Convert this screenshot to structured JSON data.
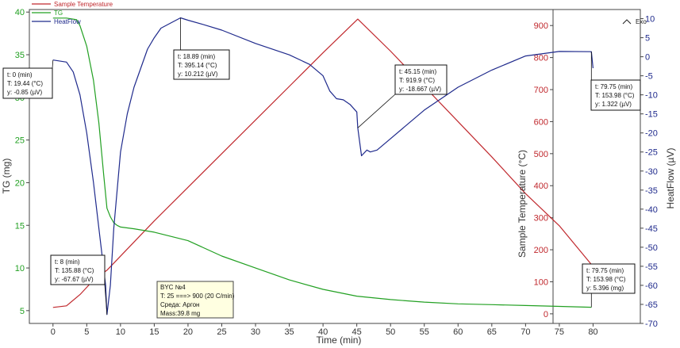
{
  "exo_label": "Exo",
  "chart_data": {
    "type": "line",
    "xlabel": "Time (min)",
    "x_ticks": [
      0,
      5,
      10,
      15,
      20,
      25,
      30,
      35,
      40,
      45,
      50,
      55,
      60,
      65,
      70,
      75,
      80
    ],
    "xlim": [
      -3.5,
      87
    ],
    "y_axes": {
      "tg": {
        "label": "TG (mg)",
        "ylim": [
          3.5,
          40.3
        ],
        "ticks": [
          5,
          10,
          15,
          20,
          25,
          30,
          35,
          40
        ],
        "color": "#22a022"
      },
      "temperature": {
        "label": "Sample Temperature (°C)",
        "ylim": [
          -30,
          950
        ],
        "ticks": [
          0,
          100,
          200,
          300,
          400,
          500,
          600,
          700,
          800,
          900
        ],
        "color": "#c0282d"
      },
      "heatflow": {
        "label": "HeatFlow (µV)",
        "ylim": [
          -70,
          12.4
        ],
        "ticks": [
          10,
          5,
          0,
          -5,
          -10,
          -15,
          -20,
          -25,
          -30,
          -35,
          -40,
          -45,
          -50,
          -55,
          -60,
          -65,
          -70
        ],
        "color": "#1f2a8c"
      }
    },
    "series": [
      {
        "name": "Sample Temperature",
        "axis": "temperature",
        "color": "#c0282d",
        "x": [
          0,
          2,
          4,
          6,
          8,
          10,
          15,
          20,
          25,
          30,
          35,
          40,
          45.15,
          50,
          55,
          60,
          65,
          70,
          75,
          79.75
        ],
        "y": [
          20,
          25,
          60,
          105,
          136,
          180,
          290,
          395,
          500,
          605,
          710,
          815,
          920,
          820,
          710,
          600,
          490,
          375,
          275,
          154
        ]
      },
      {
        "name": "TG",
        "axis": "tg",
        "color": "#22a022",
        "x": [
          0,
          2,
          3.5,
          4,
          5,
          6,
          6.8,
          7.5,
          8,
          8.5,
          9,
          9.5,
          10,
          12,
          15,
          20,
          25,
          30,
          35,
          40,
          45,
          50,
          55,
          60,
          65,
          70,
          75,
          79.75
        ],
        "y": [
          39.3,
          39.3,
          39.1,
          38.4,
          36,
          32,
          27,
          21,
          17,
          16,
          15.3,
          15.0,
          14.8,
          14.6,
          14.2,
          13.2,
          11.4,
          10.0,
          8.6,
          7.5,
          6.7,
          6.3,
          6.0,
          5.8,
          5.7,
          5.6,
          5.5,
          5.396
        ]
      },
      {
        "name": "HeatFlow",
        "axis": "heatflow",
        "color": "#1f2a8c",
        "x": [
          0,
          2,
          3,
          4,
          5,
          6,
          7,
          7.8,
          8,
          8.5,
          9,
          10,
          11,
          12,
          13,
          14,
          15,
          16,
          18.89,
          20,
          22,
          25,
          30,
          35,
          38,
          40,
          41,
          42,
          43,
          44,
          45,
          45.15,
          45.7,
          46.5,
          47,
          48,
          50,
          55,
          60,
          65,
          70,
          75,
          79.75,
          80
        ],
        "y": [
          -0.85,
          -1.4,
          -4,
          -10,
          -20,
          -33,
          -48,
          -60,
          -67.67,
          -60,
          -45,
          -25,
          -15,
          -8,
          -3,
          2,
          5,
          7.5,
          10.212,
          9.6,
          8.6,
          7,
          3.5,
          0.5,
          -2,
          -5,
          -9,
          -11,
          -11.3,
          -12.5,
          -14.5,
          -18.667,
          -26,
          -24.5,
          -25,
          -24.5,
          -21.5,
          -14,
          -8,
          -3.5,
          0.2,
          1.4,
          1.322,
          -3
        ]
      }
    ],
    "legend": [
      "Sample Temperature",
      "TG",
      "HeatFlow"
    ],
    "annotations": [
      {
        "lines": [
          "t: 0 (min)",
          "T: 19.44 (°C)",
          "y: -0.85 (µV)"
        ],
        "x": 0,
        "y": -0.85,
        "axis": "heatflow"
      },
      {
        "lines": [
          "t: 8 (min)",
          "T: 135.88 (°C)",
          "y: -67.67 (µV)"
        ],
        "x": 8,
        "y": -67.67,
        "axis": "heatflow"
      },
      {
        "lines": [
          "t: 18.89 (min)",
          "T: 395.14 (°C)",
          "y: 10.212 (µV)"
        ],
        "x": 18.89,
        "y": 10.212,
        "axis": "heatflow"
      },
      {
        "lines": [
          "t: 45.15 (min)",
          "T: 919.9 (°C)",
          "y: -18.667 (µV)"
        ],
        "x": 45.15,
        "y": -18.667,
        "axis": "heatflow"
      },
      {
        "lines": [
          "t: 79.75 (min)",
          "T: 153.98 (°C)",
          "y: 1.322 (µV)"
        ],
        "x": 79.75,
        "y": 1.322,
        "axis": "heatflow"
      },
      {
        "lines": [
          "t: 79.75 (min)",
          "T: 153.98 (°C)",
          "y: 5.396 (mg)"
        ],
        "x": 79.75,
        "y": 5.396,
        "axis": "tg"
      }
    ],
    "info_box": [
      "BYC №4",
      "T: 25 ===> 900 (20 C/min)",
      "Среда: Аргон",
      "Mass:39.8 mg"
    ]
  }
}
